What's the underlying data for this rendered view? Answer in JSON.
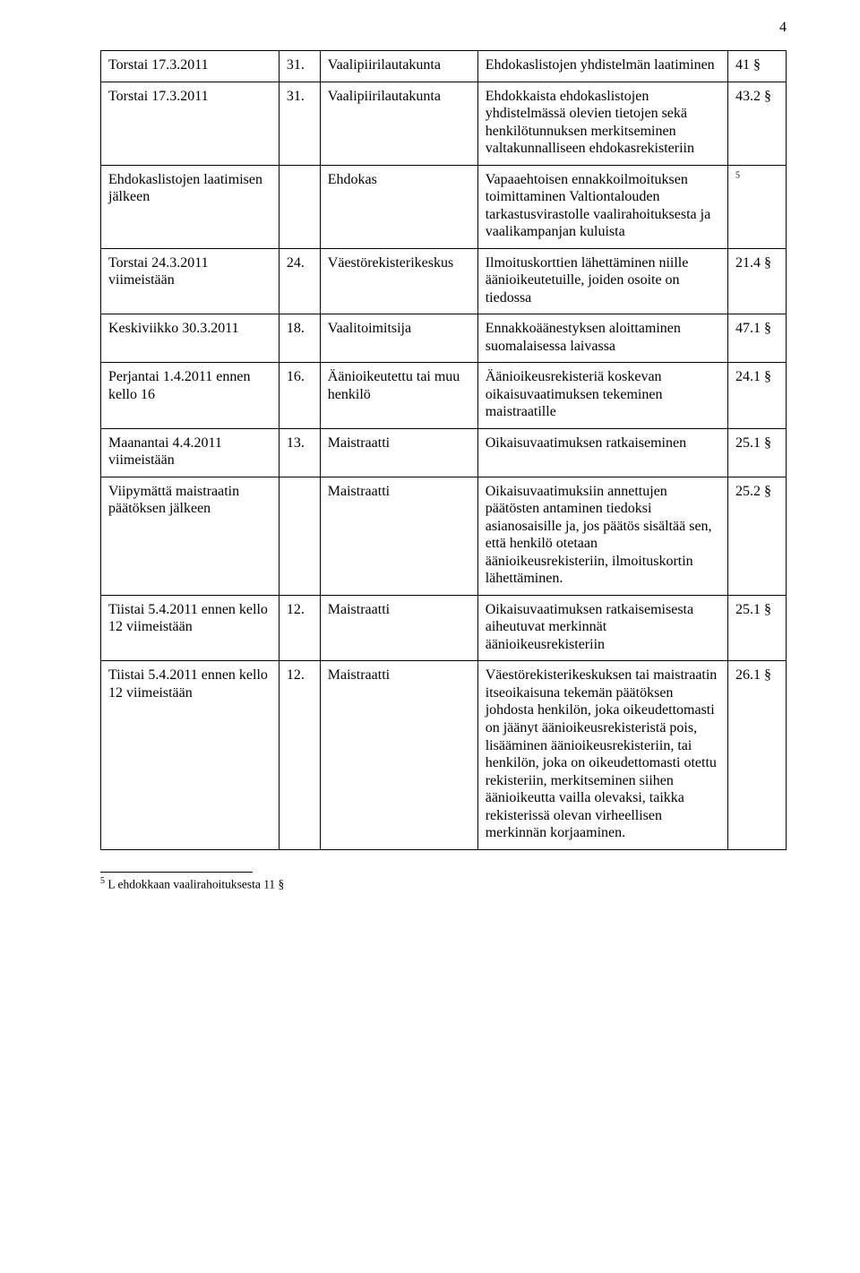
{
  "pageNumber": "4",
  "rows": [
    {
      "c1": "Torstai 17.3.2011",
      "c2": "31.",
      "c3": "Vaalipiirilautakunta",
      "c4": "Ehdokaslistojen yhdistelmän laatiminen",
      "c5": "41 §"
    },
    {
      "c1": "Torstai 17.3.2011",
      "c2": "31.",
      "c3": "Vaalipiirilautakunta",
      "c4": "Ehdokkaista ehdokaslistojen yhdistelmässä olevien tietojen sekä henkilötunnuksen merkitseminen valtakunnalliseen ehdokasrekisteriin",
      "c5": "43.2 §"
    },
    {
      "c1": "Ehdokaslistojen laatimisen jälkeen",
      "c2": "",
      "c3": "Ehdokas",
      "c4": "Vapaaehtoisen ennakkoilmoituksen toimittaminen Valtiontalouden tarkastusvirastolle vaalirahoituksesta ja vaalikampanjan kuluista",
      "c5_html": "<span class='sup'>5</span>"
    },
    {
      "c1": "Torstai 24.3.2011 viimeistään",
      "c2": "24.",
      "c3": "Väestörekisterikeskus",
      "c4": "Ilmoituskorttien lähettäminen niille äänioikeutetuille, joiden osoite on tiedossa",
      "c5": "21.4 §"
    },
    {
      "c1": "Keskiviikko 30.3.2011",
      "c2": "18.",
      "c3": "Vaalitoimitsija",
      "c4": "Ennakkoäänestyksen aloittaminen suomalaisessa laivassa",
      "c5": "47.1 §"
    },
    {
      "c1": "Perjantai 1.4.2011 ennen kello 16",
      "c2": "16.",
      "c3": "Äänioikeutettu tai muu henkilö",
      "c4": "Äänioikeusrekisteriä koskevan oikaisuvaatimuksen tekeminen maistraatille",
      "c5": "24.1 §"
    },
    {
      "c1": "Maanantai 4.4.2011 viimeistään",
      "c2": "13.",
      "c3": "Maistraatti",
      "c4": "Oikaisuvaatimuksen ratkaiseminen",
      "c5": "25.1 §"
    },
    {
      "c1": "Viipymättä maistraatin päätöksen jälkeen",
      "c2": "",
      "c3": "Maistraatti",
      "c4": "Oikaisuvaatimuksiin annettujen päätösten antaminen tiedoksi asianosaisille ja, jos päätös sisältää sen, että henkilö otetaan äänioikeusrekisteriin, ilmoituskortin lähettäminen.",
      "c5": "25.2 §"
    },
    {
      "c1": "Tiistai 5.4.2011 ennen kello 12 viimeistään",
      "c2": "12.",
      "c3": "Maistraatti",
      "c4": "Oikaisuvaatimuksen ratkaisemisesta aiheutuvat merkinnät äänioikeusrekisteriin",
      "c5": "25.1 §"
    },
    {
      "c1": "Tiistai 5.4.2011 ennen kello 12 viimeistään",
      "c2": "12.",
      "c3": "Maistraatti",
      "c4": "Väestörekisterikeskuksen tai maistraatin itseoikaisuna tekemän päätöksen johdosta henkilön, joka oikeudettomasti on jäänyt äänioikeusrekisteristä pois, lisääminen äänioikeusrekisteriin, tai henkilön, joka on oikeudettomasti otettu rekisteriin, merkitseminen siihen äänioikeutta vailla olevaksi, taikka rekisterissä olevan virheellisen merkinnän korjaaminen.",
      "c5": "26.1 §"
    }
  ],
  "footnote": {
    "num": "5",
    "text": " L ehdokkaan vaalirahoituksesta 11 §"
  }
}
